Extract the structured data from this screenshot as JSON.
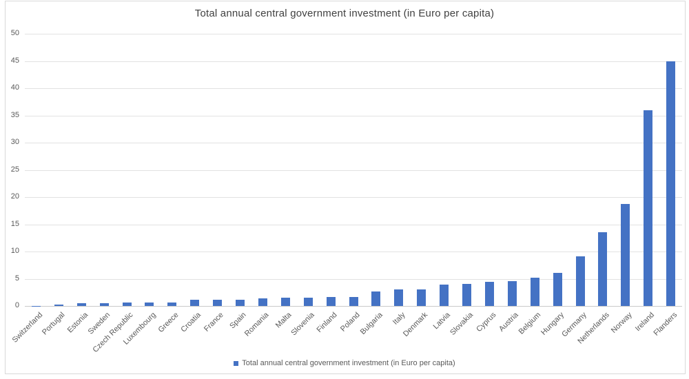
{
  "chart_data": {
    "type": "bar",
    "title": "Total annual central government investment (in Euro per capita)",
    "legend_label": "Total annual central government investment (in Euro per capita)",
    "legend_position": "bottom",
    "categories": [
      "Switzerland",
      "Portugal",
      "Estonia",
      "Sweden",
      "Czech Republic",
      "Luxembourg",
      "Greece",
      "Croatia",
      "France",
      "Spain",
      "Romania",
      "Malta",
      "Slovenia",
      "Finland",
      "Poland",
      "Bulgaria",
      "Italy",
      "Denmark",
      "Latvia",
      "Slovakia",
      "Cyprus",
      "Austria",
      "Belgium",
      "Hungary",
      "Germany",
      "Netherlands",
      "Norway",
      "Ireland",
      "Flanders"
    ],
    "values": [
      0.05,
      0.3,
      0.5,
      0.55,
      0.6,
      0.6,
      0.7,
      1.2,
      1.2,
      1.2,
      1.4,
      1.5,
      1.5,
      1.6,
      1.6,
      2.7,
      3.0,
      3.1,
      3.9,
      4.0,
      4.4,
      4.5,
      5.2,
      6.1,
      9.1,
      13.5,
      18.8,
      36,
      45
    ],
    "xlabel": "",
    "ylabel": "",
    "ylim": [
      0,
      50
    ],
    "yticks": [
      0,
      5,
      10,
      15,
      20,
      25,
      30,
      35,
      40,
      45,
      50
    ],
    "grid": true,
    "bar_color": "#4472C4",
    "text_color": "#595959",
    "title_color": "#404040",
    "gridline_color": "#E2E2E2",
    "axis_line_color": "#C9C9C9",
    "frame_border_color": "#D9D9D9",
    "background": "#FFFFFF"
  }
}
